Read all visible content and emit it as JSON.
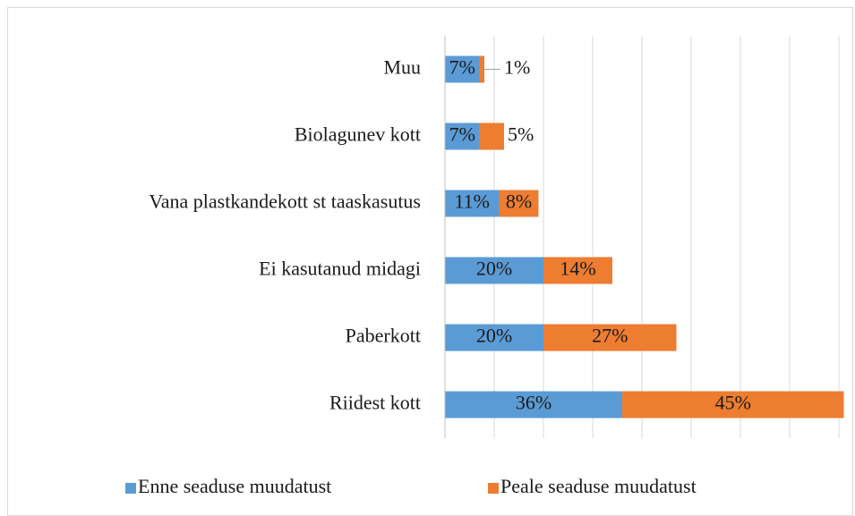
{
  "chart_data": {
    "type": "stacked-barh",
    "categories": [
      "Muu",
      "Biolagunev kott",
      "Vana plastkandekott st taaskasutus",
      "Ei kasutanud midagi",
      "Paberkott",
      "Riidest kott"
    ],
    "series": [
      {
        "name": "Enne seaduse muudatust",
        "color": "#5b9bd5",
        "values": [
          7,
          7,
          11,
          20,
          20,
          36
        ],
        "value_labels": [
          "7%",
          "7%",
          "11%",
          "20%",
          "20%",
          "36%"
        ]
      },
      {
        "name": "Peale seaduse muudatust",
        "color": "#ed7d31",
        "values": [
          1,
          5,
          8,
          14,
          27,
          45
        ],
        "value_labels": [
          "1%",
          "5%",
          "8%",
          "14%",
          "27%",
          "45%"
        ]
      }
    ],
    "xlim": [
      0,
      80
    ],
    "xticks": [
      0,
      10,
      20,
      30,
      40,
      50,
      60,
      70,
      80
    ],
    "grid": true,
    "legend": "bottom"
  }
}
